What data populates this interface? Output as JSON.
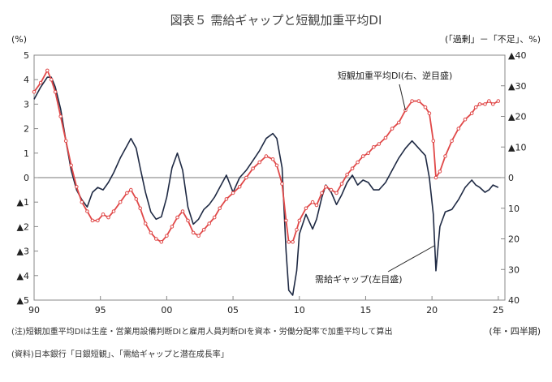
{
  "chart_data": {
    "type": "line",
    "title": "図表５ 需給ギャップと短観加重平均DI",
    "left_axis_label": "(%)",
    "right_axis_label": "(「過剰」－「不足」、%)",
    "x_axis_unit": "(年・四半期)",
    "x_ticks": [
      "90",
      "95",
      "00",
      "05",
      "10",
      "15",
      "20",
      "25"
    ],
    "x_tick_years": [
      1990,
      1995,
      2000,
      2005,
      2010,
      2015,
      2020,
      2025
    ],
    "x_range": [
      1990,
      2025.5
    ],
    "left_ticks": [
      "5",
      "4",
      "3",
      "2",
      "1",
      "0",
      "▲1",
      "▲2",
      "▲3",
      "▲4",
      "▲5"
    ],
    "left_range": [
      -5,
      5
    ],
    "right_ticks": [
      "▲40",
      "▲30",
      "▲20",
      "▲10",
      "0",
      "10",
      "20",
      "30",
      "40"
    ],
    "right_range_inverted": [
      -40,
      40
    ],
    "series": [
      {
        "name": "需給ギャップ（左目盛）",
        "color": "#1f2a44",
        "axis": "left",
        "points": [
          [
            1990.0,
            3.2
          ],
          [
            1990.5,
            3.7
          ],
          [
            1991.0,
            4.1
          ],
          [
            1991.3,
            4.1
          ],
          [
            1991.6,
            3.7
          ],
          [
            1992.0,
            2.8
          ],
          [
            1992.4,
            1.5
          ],
          [
            1992.8,
            0.3
          ],
          [
            1993.2,
            -0.5
          ],
          [
            1993.6,
            -0.9
          ],
          [
            1994.0,
            -1.2
          ],
          [
            1994.4,
            -0.6
          ],
          [
            1994.8,
            -0.4
          ],
          [
            1995.2,
            -0.5
          ],
          [
            1995.6,
            -0.2
          ],
          [
            1996.0,
            0.2
          ],
          [
            1996.5,
            0.8
          ],
          [
            1997.0,
            1.3
          ],
          [
            1997.3,
            1.6
          ],
          [
            1997.7,
            1.2
          ],
          [
            1998.0,
            0.4
          ],
          [
            1998.4,
            -0.6
          ],
          [
            1998.8,
            -1.4
          ],
          [
            1999.2,
            -1.7
          ],
          [
            1999.6,
            -1.6
          ],
          [
            2000.0,
            -0.8
          ],
          [
            2000.4,
            0.4
          ],
          [
            2000.8,
            1.0
          ],
          [
            2001.2,
            0.3
          ],
          [
            2001.6,
            -1.2
          ],
          [
            2002.0,
            -1.9
          ],
          [
            2002.4,
            -1.7
          ],
          [
            2002.8,
            -1.3
          ],
          [
            2003.2,
            -1.1
          ],
          [
            2003.6,
            -0.8
          ],
          [
            2004.0,
            -0.4
          ],
          [
            2004.5,
            0.1
          ],
          [
            2005.0,
            -0.6
          ],
          [
            2005.5,
            0.0
          ],
          [
            2006.0,
            0.3
          ],
          [
            2006.5,
            0.7
          ],
          [
            2007.0,
            1.1
          ],
          [
            2007.5,
            1.6
          ],
          [
            2008.0,
            1.8
          ],
          [
            2008.3,
            1.6
          ],
          [
            2008.7,
            0.4
          ],
          [
            2009.0,
            -3.0
          ],
          [
            2009.2,
            -4.6
          ],
          [
            2009.5,
            -4.8
          ],
          [
            2009.8,
            -3.8
          ],
          [
            2010.0,
            -2.3
          ],
          [
            2010.5,
            -1.5
          ],
          [
            2011.0,
            -2.1
          ],
          [
            2011.3,
            -1.7
          ],
          [
            2011.7,
            -0.8
          ],
          [
            2012.0,
            -0.3
          ],
          [
            2012.4,
            -0.6
          ],
          [
            2012.8,
            -1.1
          ],
          [
            2013.2,
            -0.7
          ],
          [
            2013.6,
            -0.2
          ],
          [
            2014.0,
            0.1
          ],
          [
            2014.4,
            -0.3
          ],
          [
            2014.8,
            -0.1
          ],
          [
            2015.2,
            -0.2
          ],
          [
            2015.6,
            -0.5
          ],
          [
            2016.0,
            -0.5
          ],
          [
            2016.5,
            -0.2
          ],
          [
            2017.0,
            0.3
          ],
          [
            2017.5,
            0.8
          ],
          [
            2018.0,
            1.2
          ],
          [
            2018.5,
            1.5
          ],
          [
            2019.0,
            1.2
          ],
          [
            2019.5,
            0.9
          ],
          [
            2019.8,
            0.0
          ],
          [
            2020.1,
            -1.5
          ],
          [
            2020.3,
            -3.8
          ],
          [
            2020.6,
            -2.0
          ],
          [
            2021.0,
            -1.4
          ],
          [
            2021.5,
            -1.3
          ],
          [
            2022.0,
            -0.9
          ],
          [
            2022.5,
            -0.4
          ],
          [
            2023.0,
            -0.1
          ],
          [
            2023.3,
            -0.3
          ],
          [
            2023.6,
            -0.4
          ],
          [
            2024.0,
            -0.6
          ],
          [
            2024.3,
            -0.5
          ],
          [
            2024.6,
            -0.3
          ],
          [
            2025.0,
            -0.4
          ]
        ]
      },
      {
        "name": "短観加重平均DI（右、逆目盛）",
        "color": "#e04848",
        "axis": "right",
        "points": [
          [
            1990.0,
            -28
          ],
          [
            1990.5,
            -31
          ],
          [
            1991.0,
            -35
          ],
          [
            1991.3,
            -32
          ],
          [
            1991.6,
            -28
          ],
          [
            1992.0,
            -20
          ],
          [
            1992.4,
            -12
          ],
          [
            1992.8,
            -4
          ],
          [
            1993.2,
            3
          ],
          [
            1993.6,
            8
          ],
          [
            1994.0,
            11
          ],
          [
            1994.4,
            14
          ],
          [
            1994.8,
            14
          ],
          [
            1995.2,
            12
          ],
          [
            1995.6,
            13
          ],
          [
            1996.0,
            11
          ],
          [
            1996.5,
            8
          ],
          [
            1997.0,
            5
          ],
          [
            1997.3,
            4
          ],
          [
            1997.7,
            7
          ],
          [
            1998.0,
            10
          ],
          [
            1998.4,
            15
          ],
          [
            1998.8,
            18
          ],
          [
            1999.2,
            20
          ],
          [
            1999.6,
            21
          ],
          [
            2000.0,
            19
          ],
          [
            2000.4,
            16
          ],
          [
            2000.8,
            13
          ],
          [
            2001.2,
            11
          ],
          [
            2001.6,
            14
          ],
          [
            2002.0,
            18
          ],
          [
            2002.4,
            19
          ],
          [
            2002.8,
            17
          ],
          [
            2003.2,
            15
          ],
          [
            2003.6,
            13
          ],
          [
            2004.0,
            10
          ],
          [
            2004.5,
            7
          ],
          [
            2005.0,
            5
          ],
          [
            2005.5,
            3
          ],
          [
            2006.0,
            0
          ],
          [
            2006.5,
            -3
          ],
          [
            2007.0,
            -5
          ],
          [
            2007.5,
            -7
          ],
          [
            2008.0,
            -6
          ],
          [
            2008.3,
            -4
          ],
          [
            2008.7,
            2
          ],
          [
            2009.0,
            14
          ],
          [
            2009.2,
            21
          ],
          [
            2009.5,
            21
          ],
          [
            2009.8,
            17
          ],
          [
            2010.0,
            14
          ],
          [
            2010.5,
            10
          ],
          [
            2011.0,
            8
          ],
          [
            2011.3,
            9
          ],
          [
            2011.7,
            5
          ],
          [
            2012.0,
            3
          ],
          [
            2012.4,
            4
          ],
          [
            2012.8,
            5
          ],
          [
            2013.2,
            2
          ],
          [
            2013.6,
            -1
          ],
          [
            2014.0,
            -3
          ],
          [
            2014.4,
            -5
          ],
          [
            2014.8,
            -7
          ],
          [
            2015.2,
            -8
          ],
          [
            2015.6,
            -10
          ],
          [
            2016.0,
            -11
          ],
          [
            2016.5,
            -13
          ],
          [
            2017.0,
            -16
          ],
          [
            2017.5,
            -18
          ],
          [
            2018.0,
            -22
          ],
          [
            2018.5,
            -25
          ],
          [
            2019.0,
            -25
          ],
          [
            2019.5,
            -23
          ],
          [
            2019.8,
            -21
          ],
          [
            2020.1,
            -12
          ],
          [
            2020.3,
            0
          ],
          [
            2020.6,
            -2
          ],
          [
            2021.0,
            -7
          ],
          [
            2021.5,
            -12
          ],
          [
            2022.0,
            -16
          ],
          [
            2022.5,
            -19
          ],
          [
            2023.0,
            -21
          ],
          [
            2023.3,
            -23
          ],
          [
            2023.6,
            -24
          ],
          [
            2024.0,
            -24
          ],
          [
            2024.3,
            -25
          ],
          [
            2024.6,
            -24
          ],
          [
            2025.0,
            -25
          ]
        ]
      }
    ],
    "annotations": [
      {
        "text": "短観加重平均DI(右、逆目盛)",
        "series_index": 1,
        "leader_to": [
          2018.0,
          -22
        ]
      },
      {
        "text": "需給ギャップ(左目盛)",
        "series_index": 0,
        "leader_to": [
          2019.5,
          0.9
        ]
      }
    ],
    "notes": [
      "(注)短観加重平均DIは生産・営業用設備判断DIと雇用人員判断DIを資本・労働分配率で加重平均して算出",
      "(資料)日本銀行「日銀短観」、「需給ギャップと潜在成長率」"
    ]
  }
}
